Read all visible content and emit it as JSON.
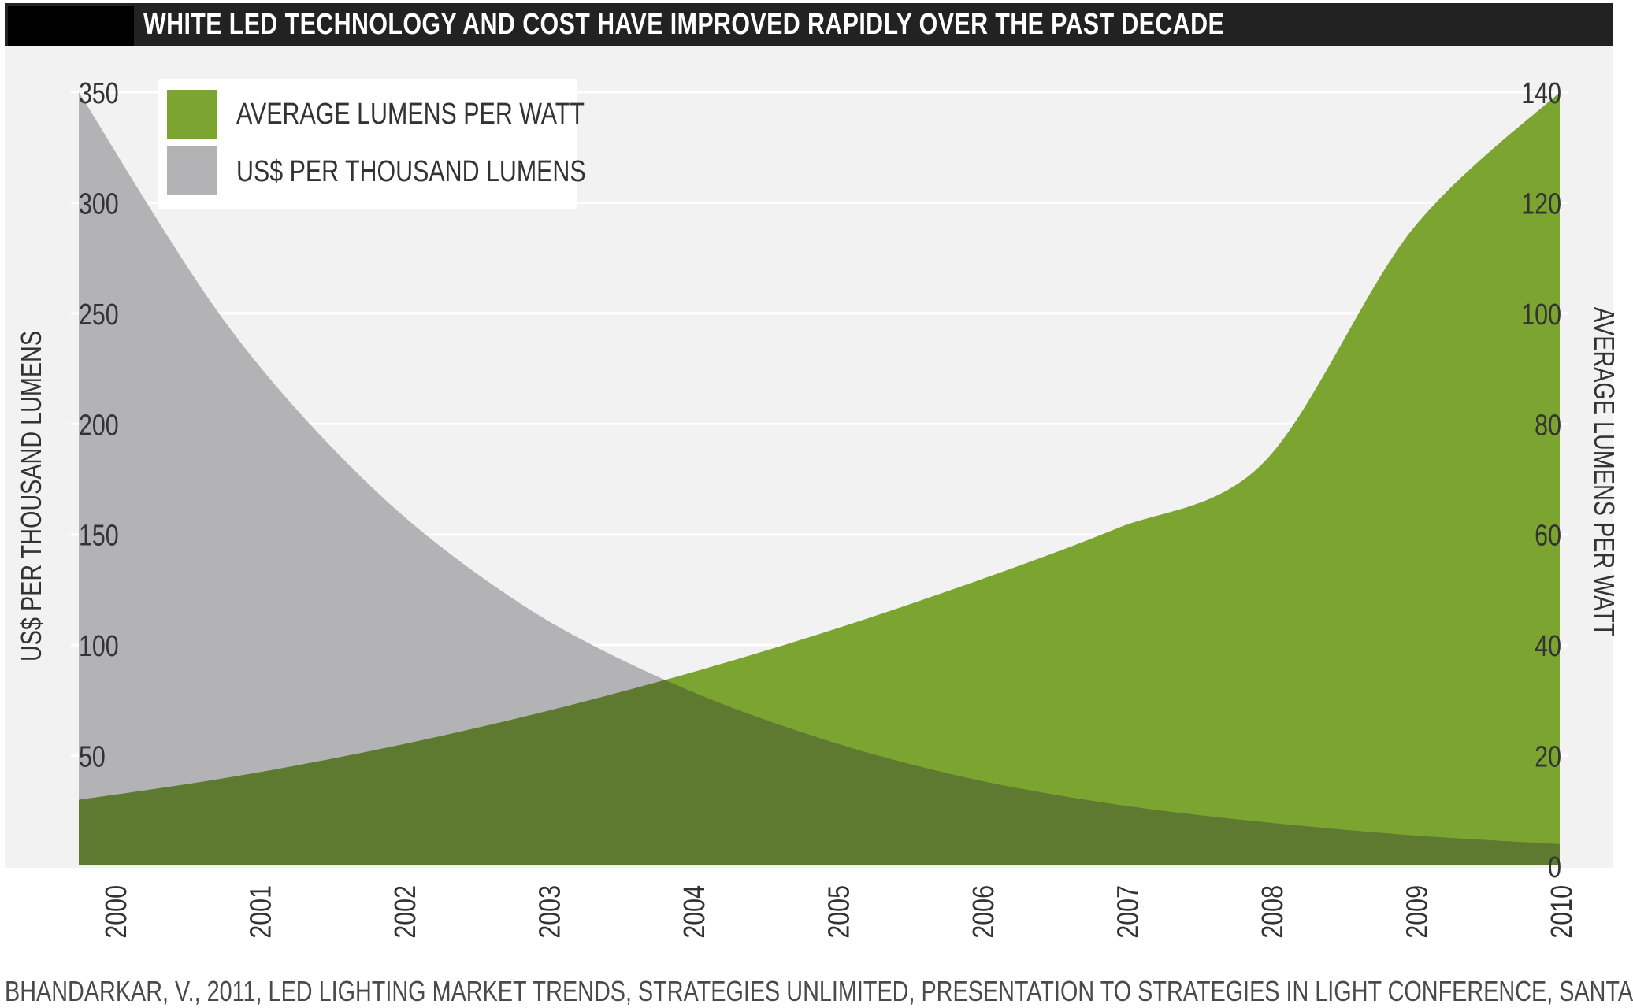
{
  "title": "WHITE LED TECHNOLOGY AND COST HAVE IMPROVED RAPIDLY OVER THE PAST DECADE",
  "source": "BHANDARKAR, V., 2011, LED LIGHTING MARKET TRENDS, STRATEGIES UNLIMITED, PRESENTATION TO STRATEGIES IN LIGHT CONFERENCE, SANTA",
  "colors": {
    "green": "#7ba530",
    "gray": "#b3b3b5",
    "overlap": "#5e7930",
    "background": "#f2f2f3"
  },
  "chart_data": {
    "type": "area",
    "title": "WHITE LED TECHNOLOGY AND COST HAVE IMPROVED RAPIDLY OVER THE PAST DECADE",
    "x": [
      2000,
      2001,
      2002,
      2003,
      2004,
      2005,
      2006,
      2007,
      2008,
      2009,
      2010
    ],
    "xlim": [
      2000,
      2010
    ],
    "left_axis": {
      "label": "US$ PER THOUSAND LUMENS",
      "ylim": [
        0,
        350
      ],
      "ticks": [
        0,
        50,
        100,
        150,
        200,
        250,
        300,
        350
      ],
      "tick_labels": [
        "",
        "50",
        "100",
        "150",
        "200",
        "250",
        "300",
        "350"
      ]
    },
    "right_axis": {
      "label": "AVERAGE LUMENS PER WATT",
      "ylim": [
        0,
        140
      ],
      "ticks": [
        0,
        20,
        40,
        60,
        80,
        100,
        120,
        140
      ],
      "tick_labels": [
        "0",
        "20",
        "40",
        "60",
        "80",
        "100",
        "120",
        "140"
      ]
    },
    "legend": {
      "position": "top-left"
    },
    "series": [
      {
        "name": "AVERAGE LUMENS PER WATT",
        "axis": "right",
        "color": "#7ba530",
        "values": [
          12,
          16,
          21,
          27,
          34,
          42,
          51,
          61,
          73,
          115,
          140
        ]
      },
      {
        "name": "US$ PER THOUSAND LUMENS",
        "axis": "left",
        "color": "#b3b3b5",
        "values": [
          350,
          245,
          170,
          118,
          83,
          58,
          40,
          28,
          20,
          14,
          10
        ]
      }
    ]
  }
}
